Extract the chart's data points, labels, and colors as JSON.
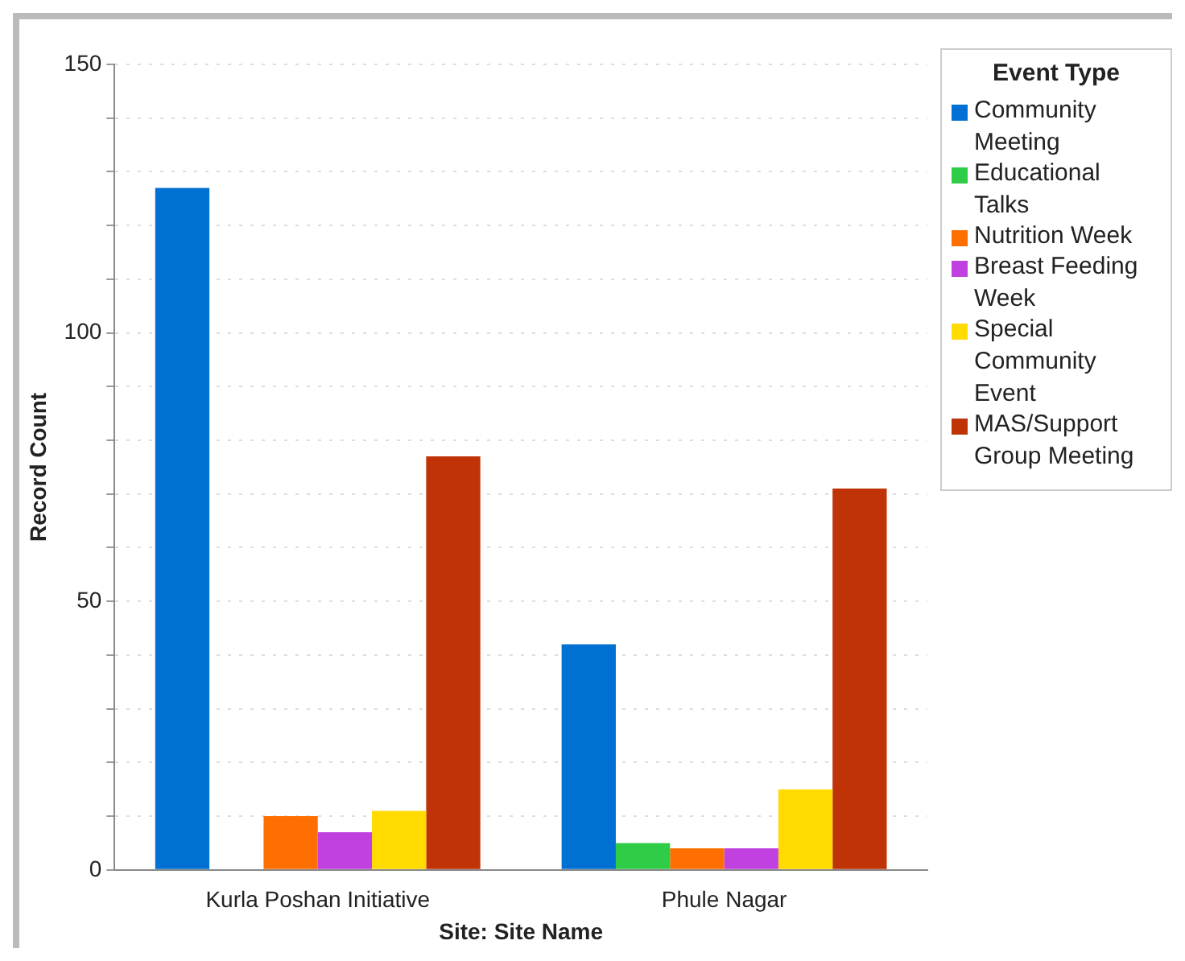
{
  "chart_data": {
    "type": "bar",
    "xlabel": "Site: Site Name",
    "ylabel": "Record Count",
    "legend_title": "Event Type",
    "legend": "right",
    "grid": "y",
    "categories": [
      "Kurla Poshan Initiative",
      "Phule Nagar"
    ],
    "series": [
      {
        "name": "Community Meeting",
        "color": "#0070d2",
        "values": [
          127,
          42
        ]
      },
      {
        "name": "Educational Talks",
        "color": "#2ecc47",
        "values": [
          null,
          5
        ]
      },
      {
        "name": "Nutrition Week",
        "color": "#ff6e00",
        "values": [
          10,
          4
        ]
      },
      {
        "name": "Breast Feeding Week",
        "color": "#c040e0",
        "values": [
          7,
          4
        ]
      },
      {
        "name": "Special Community Event",
        "color": "#ffdb00",
        "values": [
          11,
          15
        ]
      },
      {
        "name": "MAS/Support Group Meeting",
        "color": "#bf3306",
        "values": [
          77,
          71
        ]
      }
    ],
    "ylim": [
      0,
      150
    ],
    "yticks": [
      0,
      {
        "value": 10,
        "label": null
      },
      {
        "value": 20,
        "label": null
      },
      {
        "value": 30,
        "label": null
      },
      {
        "value": 40,
        "label": null
      },
      50,
      {
        "value": 60,
        "label": null
      },
      {
        "value": 70,
        "label": null
      },
      {
        "value": 80,
        "label": null
      },
      {
        "value": 90,
        "label": null
      },
      100,
      {
        "value": 110,
        "label": null
      },
      {
        "value": 120,
        "label": null
      },
      {
        "value": 130,
        "label": null
      },
      {
        "value": 140,
        "label": null
      },
      150
    ]
  }
}
